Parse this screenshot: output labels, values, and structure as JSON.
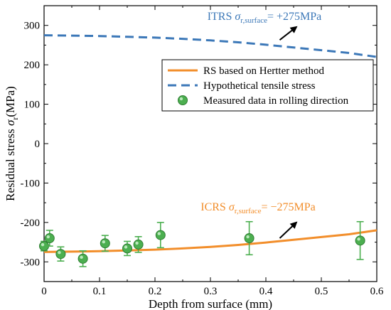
{
  "chart_data": {
    "type": "line",
    "xlabel": "Depth from surface (mm)",
    "ylabel": {
      "main": "Residual stress ",
      "symbol": "σ",
      "subscript": "r",
      "unit": "(MPa)"
    },
    "xlim": [
      0,
      0.6
    ],
    "ylim": [
      -350,
      350
    ],
    "xticks": [
      0,
      0.1,
      0.2,
      0.3,
      0.4,
      0.5,
      0.6
    ],
    "xtick_labels": [
      "0",
      "0.1",
      "0.2",
      "0.3",
      "0.4",
      "0.5",
      "0.6"
    ],
    "yticks": [
      -300,
      -200,
      -100,
      0,
      100,
      200,
      300
    ],
    "ytick_labels": [
      "-300",
      "-200",
      "-100",
      "0",
      "100",
      "200",
      "300"
    ],
    "grid": false,
    "legend_position": "top-right",
    "series": [
      {
        "name": "RS based on Hertter  method",
        "kind": "line",
        "style": "solid",
        "color": "#f28e2b",
        "x": [
          0,
          0.05,
          0.1,
          0.15,
          0.2,
          0.25,
          0.3,
          0.35,
          0.4,
          0.45,
          0.5,
          0.55,
          0.6
        ],
        "y": [
          -275,
          -274,
          -273,
          -271,
          -269,
          -266,
          -262,
          -257,
          -251,
          -244,
          -237,
          -230,
          -220
        ]
      },
      {
        "name": "Hypothetical tensile stress",
        "kind": "line",
        "style": "dashed",
        "color": "#3c78b8",
        "x": [
          0,
          0.05,
          0.1,
          0.15,
          0.2,
          0.25,
          0.3,
          0.35,
          0.4,
          0.45,
          0.5,
          0.55,
          0.6
        ],
        "y": [
          275,
          274,
          273,
          271,
          269,
          266,
          262,
          257,
          251,
          244,
          237,
          230,
          220
        ]
      },
      {
        "name": "Measured data in rolling direction",
        "kind": "scatter",
        "color": "#4caf50",
        "x": [
          0,
          0.01,
          0.03,
          0.07,
          0.11,
          0.15,
          0.17,
          0.21,
          0.37,
          0.57
        ],
        "y": [
          -260,
          -240,
          -280,
          -292,
          -253,
          -266,
          -256,
          -232,
          -240,
          -246
        ],
        "err": [
          12,
          20,
          18,
          20,
          20,
          18,
          20,
          32,
          42,
          48
        ]
      }
    ],
    "annotations": [
      {
        "id": "itrs",
        "prefix": "ITRS ",
        "symbol": "σ",
        "subscript": "r,surface",
        "suffix": "= +275MPa",
        "color": "#3c78b8",
        "arrow_from": [
          0.425,
          263
        ],
        "arrow_to": [
          0.455,
          296
        ]
      },
      {
        "id": "icrs",
        "prefix": "ICRS ",
        "symbol": "σ",
        "subscript": "r,surface",
        "suffix": "= −275MPa",
        "color": "#f28e2b",
        "arrow_from": [
          0.425,
          -240
        ],
        "arrow_to": [
          0.455,
          -200
        ]
      }
    ]
  }
}
